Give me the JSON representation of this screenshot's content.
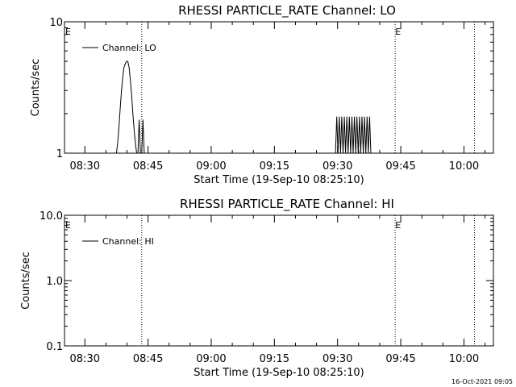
{
  "chart_data": [
    {
      "type": "line",
      "title": "RHESSI PARTICLE_RATE Channel: LO",
      "xlabel": "Start Time (19-Sep-10 08:25:10)",
      "ylabel": "Counts/sec",
      "y_scale": "log",
      "ylim": [
        1,
        10
      ],
      "y_ticks": [
        "1",
        "10"
      ],
      "xlim": [
        "08:25:10",
        "10:07:00"
      ],
      "x_ticks": [
        "08:30",
        "08:45",
        "09:00",
        "09:15",
        "09:30",
        "09:45",
        "10:00"
      ],
      "grid": false,
      "legend_position": "top-left",
      "series": [
        {
          "name": "Channel: LO",
          "color": "#000000",
          "x": [
            "08:37:30",
            "08:37:48",
            "08:38:06",
            "08:38:24",
            "08:38:42",
            "08:39:00",
            "08:39:18",
            "08:39:36",
            "08:39:54",
            "08:40:12",
            "08:40:30",
            "08:40:48",
            "08:41:06",
            "08:41:24",
            "08:41:42",
            "08:42:00",
            "08:42:18",
            "08:42:36",
            "08:42:54",
            "08:43:12",
            "08:43:30",
            "08:43:48",
            "08:44:06",
            "09:29:30",
            "09:29:48",
            "09:30:06",
            "09:30:24",
            "09:30:42",
            "09:31:00",
            "09:31:18",
            "09:31:36",
            "09:31:54",
            "09:32:12",
            "09:32:30",
            "09:32:48",
            "09:33:06",
            "09:33:24",
            "09:33:42",
            "09:34:00",
            "09:34:18",
            "09:34:36",
            "09:34:54",
            "09:35:12",
            "09:35:30",
            "09:35:48",
            "09:36:06",
            "09:36:24",
            "09:36:42",
            "09:37:00",
            "09:37:18",
            "09:37:36",
            "09:37:54"
          ],
          "y": [
            1,
            1.2,
            1.6,
            2.2,
            3,
            3.8,
            4.5,
            4.8,
            5,
            5,
            4.5,
            3.6,
            2.8,
            2,
            1.5,
            1.2,
            1,
            1,
            1.8,
            1,
            1,
            1.8,
            1,
            1,
            1.9,
            1,
            1.9,
            1,
            1.9,
            1,
            1.9,
            1,
            1.9,
            1,
            1.9,
            1,
            1.9,
            1,
            1.9,
            1,
            1.9,
            1,
            1.9,
            1,
            1.9,
            1,
            1.9,
            1,
            1.9,
            1,
            1.9,
            1
          ]
        }
      ],
      "annotations": [
        {
          "time": "08:25:10",
          "label": "E"
        },
        {
          "time": "09:43:30",
          "label": "E"
        }
      ],
      "vlines": [
        "08:43:30",
        "09:43:40",
        "10:02:30"
      ]
    },
    {
      "type": "line",
      "title": "RHESSI PARTICLE_RATE Channel: HI",
      "xlabel": "Start Time (19-Sep-10 08:25:10)",
      "ylabel": "Counts/sec",
      "y_scale": "log",
      "ylim": [
        0.1,
        10
      ],
      "y_ticks": [
        "0.1",
        "1.0",
        "10.0"
      ],
      "xlim": [
        "08:25:10",
        "10:07:00"
      ],
      "x_ticks": [
        "08:30",
        "08:45",
        "09:00",
        "09:15",
        "09:30",
        "09:45",
        "10:00"
      ],
      "grid": false,
      "legend_position": "top-left",
      "series": [
        {
          "name": "Channel: HI",
          "color": "#000000",
          "x": [],
          "y": []
        }
      ],
      "annotations": [
        {
          "time": "08:25:10",
          "label": "E"
        },
        {
          "time": "09:43:30",
          "label": "E"
        }
      ],
      "vlines": [
        "08:43:30",
        "09:43:40",
        "10:02:30"
      ]
    }
  ],
  "footer": {
    "timestamp": "16-Oct-2021 09:05"
  }
}
